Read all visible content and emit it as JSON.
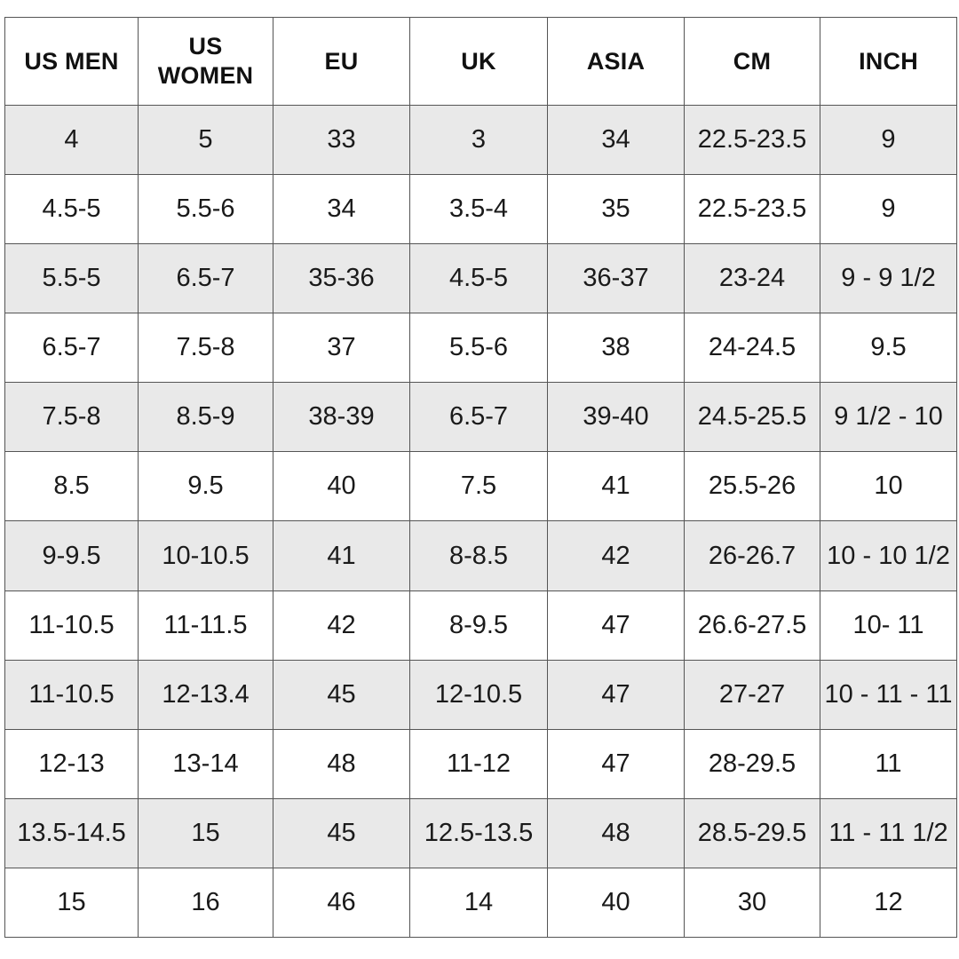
{
  "table": {
    "headers": [
      "US MEN",
      "US WOMEN",
      "EU",
      "UK",
      "ASIA",
      "CM",
      "INCH"
    ],
    "rows": [
      [
        "4",
        "5",
        "33",
        "3",
        "34",
        "22.5-23.5",
        "9"
      ],
      [
        "4.5-5",
        "5.5-6",
        "34",
        "3.5-4",
        "35",
        "22.5-23.5",
        "9"
      ],
      [
        "5.5-5",
        "6.5-7",
        "35-36",
        "4.5-5",
        "36-37",
        "23-24",
        "9 - 9 1/2"
      ],
      [
        "6.5-7",
        "7.5-8",
        "37",
        "5.5-6",
        "38",
        "24-24.5",
        "9.5"
      ],
      [
        "7.5-8",
        "8.5-9",
        "38-39",
        "6.5-7",
        "39-40",
        "24.5-25.5",
        "9 1/2 - 10"
      ],
      [
        "8.5",
        "9.5",
        "40",
        "7.5",
        "41",
        "25.5-26",
        "10"
      ],
      [
        "9-9.5",
        "10-10.5",
        "41",
        "8-8.5",
        "42",
        "26-26.7",
        "10 - 10 1/2"
      ],
      [
        "11-10.5",
        "11-11.5",
        "42",
        "8-9.5",
        "47",
        "26.6-27.5",
        "10- 11"
      ],
      [
        "11-10.5",
        "12-13.4",
        "45",
        "12-10.5",
        "47",
        "27-27",
        "10 - 11 - 11"
      ],
      [
        "12-13",
        "13-14",
        "48",
        "11-12",
        "47",
        "28-29.5",
        "11"
      ],
      [
        "13.5-14.5",
        "15",
        "45",
        "12.5-13.5",
        "48",
        "28.5-29.5",
        "11 - 11 1/2"
      ],
      [
        "15",
        "16",
        "46",
        "14",
        "40",
        "30",
        "12"
      ]
    ]
  }
}
